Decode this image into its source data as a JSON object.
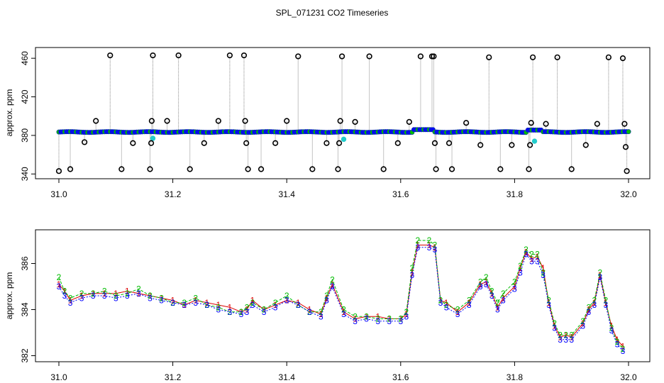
{
  "title": "SPL_071231  CO2 Timeseries",
  "colors": {
    "outlier_marker": "#000000",
    "series1": "#dd0000",
    "series2": "#00bb00",
    "series3": "#0000ff",
    "flagged": "#22cccc",
    "dropline": "#888888"
  },
  "chart_data": [
    {
      "type": "scatter",
      "ylabel": "approx. ppm",
      "xlabel": "",
      "xlim": [
        31.0,
        32.0
      ],
      "ylim": [
        338,
        466
      ],
      "x_ticks": [
        "31.0",
        "31.2",
        "31.4",
        "31.6",
        "31.8",
        "32.0"
      ],
      "y_ticks": [
        "340",
        "380",
        "420",
        "460"
      ],
      "grid": false,
      "legend": "none",
      "outliers": [
        [
          31.0,
          343
        ],
        [
          31.02,
          345
        ],
        [
          31.045,
          373
        ],
        [
          31.065,
          395
        ],
        [
          31.09,
          463
        ],
        [
          31.11,
          345
        ],
        [
          31.13,
          372
        ],
        [
          31.16,
          345
        ],
        [
          31.162,
          372
        ],
        [
          31.163,
          395
        ],
        [
          31.165,
          463
        ],
        [
          31.19,
          395
        ],
        [
          31.21,
          463
        ],
        [
          31.23,
          345
        ],
        [
          31.255,
          372
        ],
        [
          31.28,
          395
        ],
        [
          31.3,
          463
        ],
        [
          31.325,
          463
        ],
        [
          31.327,
          395
        ],
        [
          31.329,
          372
        ],
        [
          31.332,
          345
        ],
        [
          31.355,
          345
        ],
        [
          31.38,
          372
        ],
        [
          31.4,
          395
        ],
        [
          31.42,
          462
        ],
        [
          31.445,
          345
        ],
        [
          31.47,
          372
        ],
        [
          31.49,
          345
        ],
        [
          31.492,
          372
        ],
        [
          31.494,
          395
        ],
        [
          31.497,
          462
        ],
        [
          31.52,
          394
        ],
        [
          31.545,
          462
        ],
        [
          31.57,
          345
        ],
        [
          31.595,
          372
        ],
        [
          31.615,
          394
        ],
        [
          31.635,
          462
        ],
        [
          31.655,
          462
        ],
        [
          31.658,
          462
        ],
        [
          31.66,
          372
        ],
        [
          31.662,
          345
        ],
        [
          31.685,
          372
        ],
        [
          31.69,
          345
        ],
        [
          31.715,
          393
        ],
        [
          31.74,
          370
        ],
        [
          31.755,
          461
        ],
        [
          31.775,
          345
        ],
        [
          31.795,
          370
        ],
        [
          31.825,
          345
        ],
        [
          31.827,
          370
        ],
        [
          31.829,
          393
        ],
        [
          31.832,
          461
        ],
        [
          31.855,
          392
        ],
        [
          31.875,
          461
        ],
        [
          31.9,
          345
        ],
        [
          31.925,
          370
        ],
        [
          31.945,
          392
        ],
        [
          31.965,
          461
        ],
        [
          31.99,
          460
        ],
        [
          31.993,
          392
        ],
        [
          31.995,
          368
        ],
        [
          31.997,
          343
        ]
      ],
      "flagged": [
        [
          31.165,
          377
        ],
        [
          31.5,
          376
        ],
        [
          31.835,
          374
        ]
      ]
    },
    {
      "type": "line",
      "ylabel": "approx. ppm",
      "xlabel": "",
      "xlim": [
        31.0,
        32.0
      ],
      "ylim": [
        381.8,
        387.4
      ],
      "x_ticks": [
        "31.0",
        "31.2",
        "31.4",
        "31.6",
        "31.8",
        "32.0"
      ],
      "y_ticks": [
        "382",
        "384",
        "386"
      ],
      "grid": false,
      "legend": "none",
      "series_symbols": [
        "1",
        "2",
        "3"
      ],
      "x": [
        31.0,
        31.01,
        31.02,
        31.04,
        31.06,
        31.08,
        31.1,
        31.12,
        31.14,
        31.16,
        31.18,
        31.2,
        31.22,
        31.24,
        31.26,
        31.28,
        31.3,
        31.32,
        31.33,
        31.34,
        31.36,
        31.38,
        31.4,
        31.42,
        31.44,
        31.46,
        31.47,
        31.48,
        31.5,
        31.52,
        31.54,
        31.56,
        31.58,
        31.6,
        31.61,
        31.62,
        31.63,
        31.65,
        31.66,
        31.67,
        31.68,
        31.7,
        31.72,
        31.74,
        31.75,
        31.76,
        31.77,
        31.78,
        31.8,
        31.81,
        31.82,
        31.83,
        31.84,
        31.85,
        31.86,
        31.87,
        31.88,
        31.89,
        31.9,
        31.92,
        31.93,
        31.94,
        31.95,
        31.96,
        31.97,
        31.98,
        31.99
      ],
      "series": [
        {
          "values": [
            385.1,
            384.8,
            384.4,
            384.6,
            384.7,
            384.7,
            384.7,
            384.8,
            384.7,
            384.6,
            384.5,
            384.4,
            384.2,
            384.4,
            384.3,
            384.2,
            384.1,
            383.9,
            384.0,
            384.4,
            384.0,
            384.2,
            384.4,
            384.3,
            384.0,
            383.8,
            384.5,
            385.1,
            383.9,
            383.6,
            383.7,
            383.7,
            383.6,
            383.6,
            383.8,
            385.6,
            386.8,
            386.8,
            386.7,
            384.4,
            384.3,
            383.9,
            384.3,
            385.1,
            385.2,
            384.7,
            384.1,
            384.5,
            385.0,
            385.8,
            386.5,
            386.2,
            386.3,
            385.8,
            384.3,
            383.3,
            382.8,
            382.9,
            382.8,
            383.4,
            384.0,
            384.3,
            385.5,
            384.3,
            383.3,
            382.7,
            382.4
          ]
        },
        {
          "values": [
            385.4,
            384.8,
            384.5,
            384.7,
            384.7,
            384.8,
            384.6,
            384.7,
            384.9,
            384.6,
            384.5,
            384.3,
            384.3,
            384.5,
            384.2,
            384.1,
            383.9,
            383.9,
            384.1,
            384.3,
            384.0,
            384.3,
            384.6,
            384.2,
            383.9,
            383.9,
            384.6,
            385.3,
            384.0,
            383.7,
            383.7,
            383.6,
            383.6,
            383.6,
            383.9,
            385.8,
            387.0,
            387.0,
            386.8,
            384.4,
            384.2,
            384.0,
            384.4,
            385.2,
            385.4,
            384.8,
            384.3,
            384.7,
            385.2,
            385.9,
            386.6,
            386.4,
            386.4,
            385.6,
            384.4,
            383.4,
            382.9,
            382.9,
            382.9,
            383.5,
            384.1,
            384.4,
            385.6,
            384.4,
            383.2,
            382.6,
            382.3
          ]
        },
        {
          "values": [
            385.0,
            384.6,
            384.3,
            384.5,
            384.6,
            384.6,
            384.5,
            384.6,
            384.7,
            384.5,
            384.4,
            384.3,
            384.2,
            384.3,
            384.2,
            384.0,
            383.9,
            383.8,
            383.9,
            384.2,
            383.9,
            384.1,
            384.4,
            384.2,
            383.9,
            383.7,
            384.4,
            385.0,
            383.8,
            383.5,
            383.6,
            383.5,
            383.5,
            383.5,
            383.7,
            385.5,
            386.7,
            386.7,
            386.6,
            384.3,
            384.1,
            383.8,
            384.2,
            385.0,
            385.1,
            384.6,
            384.0,
            384.4,
            384.9,
            385.6,
            386.4,
            386.1,
            386.1,
            385.5,
            384.2,
            383.2,
            382.7,
            382.7,
            382.7,
            383.3,
            383.9,
            384.2,
            385.4,
            384.2,
            383.1,
            382.5,
            382.2
          ]
        }
      ]
    }
  ]
}
